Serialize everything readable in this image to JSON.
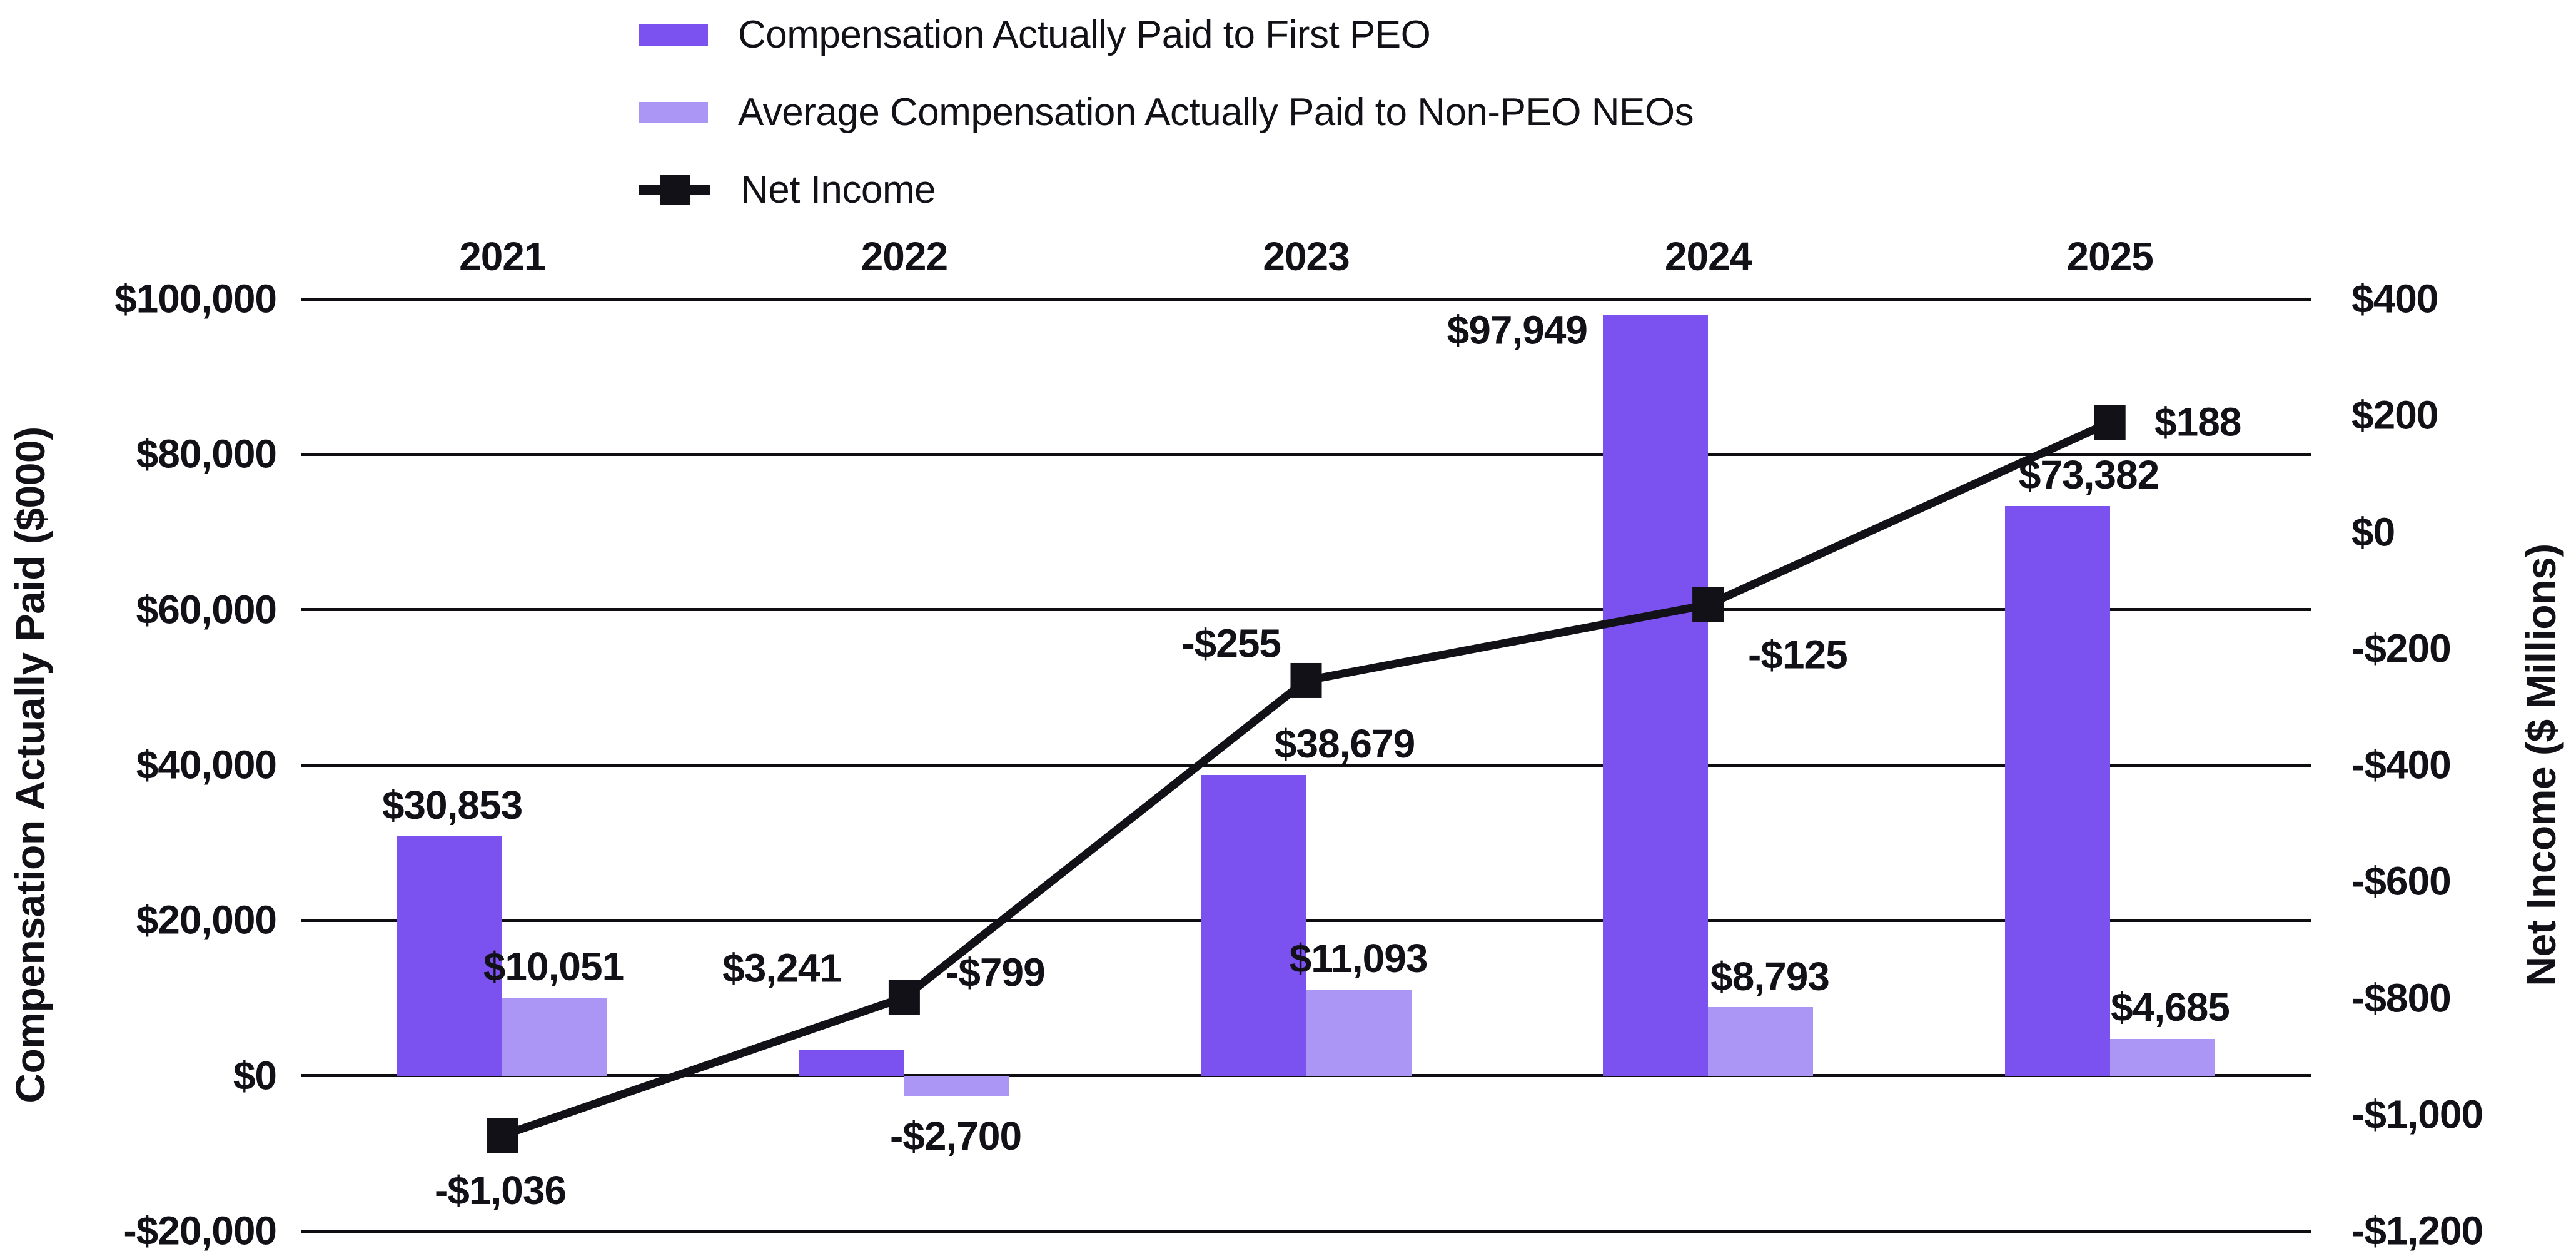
{
  "legend": [
    {
      "label": "Compensation Actually Paid to First PEO",
      "color": "#7B52F0",
      "marker": "swatch"
    },
    {
      "label": "Average Compensation Actually Paid to Non-PEO NEOs",
      "color": "#AB95F5",
      "marker": "swatch"
    },
    {
      "label": "Net Income",
      "color": "#121118",
      "marker": "line-with-square"
    }
  ],
  "chart_data": {
    "type": "bar+line combo",
    "categories": [
      "2021",
      "2022",
      "2023",
      "2024",
      "2025"
    ],
    "series": [
      {
        "name": "Compensation Actually Paid to First PEO",
        "type": "bar",
        "axis": "left",
        "color": "#7B52F0",
        "values": [
          30853,
          3241,
          38679,
          97949,
          73382
        ],
        "labels": [
          "$30,853",
          "$3,241",
          "$38,679",
          "$97,949",
          "$73,382"
        ]
      },
      {
        "name": "Average Compensation Actually Paid to Non-PEO NEOs",
        "type": "bar",
        "axis": "left",
        "color": "#AB95F5",
        "values": [
          10051,
          -2700,
          11093,
          8793,
          4685
        ],
        "labels": [
          "$10,051",
          "-$2,700",
          "$11,093",
          "$8,793",
          "$4,685"
        ]
      },
      {
        "name": "Net Income",
        "type": "line",
        "axis": "right",
        "color": "#121118",
        "values": [
          -1036,
          -799,
          -255,
          -125,
          188
        ],
        "labels": [
          "-$1,036",
          "-$799",
          "-$255",
          "-$125",
          "$188"
        ]
      }
    ],
    "left_axis": {
      "title": "Compensation Actually Paid ($000)",
      "min": -20000,
      "max": 100000,
      "tick_step": 20000,
      "tick_labels": [
        "$100,000",
        "$80,000",
        "$60,000",
        "$40,000",
        "$20,000",
        "$0",
        "-$20,000"
      ]
    },
    "right_axis": {
      "title": "Net Income ($ Millions)",
      "min": -1200,
      "max": 400,
      "tick_step": 200,
      "tick_labels": [
        "$400",
        "$200",
        "$0",
        "-$200",
        "-$400",
        "-$600",
        "-$800",
        "-$1,000",
        "-$1,200"
      ]
    },
    "grid": "horizontal",
    "legend_position": "top-left"
  }
}
